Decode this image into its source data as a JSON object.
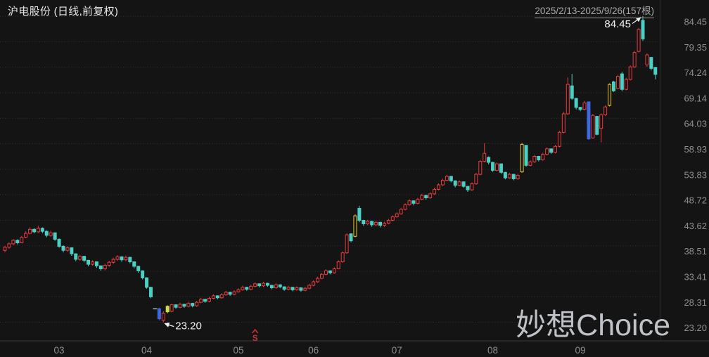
{
  "header": {
    "title": "沪电股份 (日线,前复权)",
    "range_link": "2025/2/13-2025/9/26(157根)"
  },
  "watermark": "妙想Choice",
  "annotations": {
    "high_label": "84.45",
    "low_label": "23.20",
    "signal_marker": "S"
  },
  "colors": {
    "background": "#141414",
    "up": "#e83b3e",
    "down": "#4bd0c3",
    "blue": "#3d68e0",
    "yellow": "#e8c52f",
    "yellowgreen": "#cbe14b",
    "flat": "#9fb6bf",
    "grid": "#323232",
    "axis_line": "#3b3b3b",
    "axis_text": "#8f8f8f",
    "annotation_text": "#f2f2f2",
    "signal": "#cf3232",
    "watermark": "#ccd0d5"
  },
  "chart_data": {
    "type": "candlestick",
    "symbol": "沪电股份",
    "period_type": "日线",
    "adjustment": "前复权",
    "date_range": "2025/2/13-2025/9/26",
    "bar_count": 157,
    "high": 84.45,
    "low": 23.2,
    "high_index": 153,
    "low_index": 38,
    "sell_signal_index": 60,
    "ylim": [
      23.2,
      84.45
    ],
    "grid": "dotted-horizontal",
    "y_axis_labels": [
      "84.45",
      "79.35",
      "74.24",
      "69.14",
      "64.03",
      "58.93",
      "53.83",
      "48.72",
      "43.62",
      "38.51",
      "33.41",
      "28.31",
      "23.20"
    ],
    "x_axis": [
      {
        "label": "03",
        "index": 13
      },
      {
        "label": "04",
        "index": 34
      },
      {
        "label": "05",
        "index": 56
      },
      {
        "label": "06",
        "index": 74
      },
      {
        "label": "07",
        "index": 94
      },
      {
        "label": "08",
        "index": 117
      },
      {
        "label": "09",
        "index": 138
      }
    ],
    "color_overrides": {
      "36": "flat",
      "37": "blue",
      "39": "yellowgreen",
      "84": "yellow",
      "124": "yellow",
      "140": "blue",
      "145": "yellow"
    },
    "ohlc": [
      [
        37.6,
        38.5,
        37.2,
        38.2
      ],
      [
        38.2,
        39.2,
        37.9,
        38.9
      ],
      [
        38.9,
        39.9,
        38.6,
        39.6
      ],
      [
        39.6,
        39.8,
        38.8,
        39.1
      ],
      [
        39.1,
        40.5,
        39.0,
        40.2
      ],
      [
        40.2,
        41.4,
        40.0,
        41.0
      ],
      [
        41.0,
        42.2,
        40.8,
        41.8
      ],
      [
        41.8,
        42.0,
        41.0,
        41.3
      ],
      [
        41.3,
        42.5,
        41.1,
        42.0
      ],
      [
        42.0,
        42.2,
        41.0,
        41.4
      ],
      [
        41.4,
        41.6,
        40.2,
        40.6
      ],
      [
        40.6,
        41.5,
        40.3,
        41.1
      ],
      [
        41.1,
        41.2,
        39.5,
        39.8
      ],
      [
        39.8,
        40.0,
        38.1,
        38.4
      ],
      [
        38.4,
        38.6,
        37.2,
        37.6
      ],
      [
        37.6,
        38.4,
        37.3,
        38.1
      ],
      [
        38.1,
        38.2,
        36.5,
        36.9
      ],
      [
        36.9,
        37.0,
        35.4,
        35.8
      ],
      [
        35.8,
        36.7,
        35.5,
        36.4
      ],
      [
        36.4,
        36.5,
        35.2,
        35.6
      ],
      [
        35.6,
        35.7,
        34.4,
        34.8
      ],
      [
        34.8,
        35.6,
        34.5,
        35.3
      ],
      [
        35.3,
        35.4,
        34.1,
        34.5
      ],
      [
        34.5,
        34.6,
        33.5,
        33.9
      ],
      [
        33.9,
        34.9,
        33.6,
        34.6
      ],
      [
        34.6,
        35.5,
        34.3,
        35.2
      ],
      [
        35.2,
        36.1,
        34.9,
        35.8
      ],
      [
        35.8,
        36.6,
        35.5,
        36.3
      ],
      [
        36.3,
        36.4,
        35.3,
        35.7
      ],
      [
        35.7,
        36.5,
        35.4,
        36.2
      ],
      [
        36.2,
        36.3,
        35.0,
        35.3
      ],
      [
        35.3,
        35.4,
        34.0,
        34.4
      ],
      [
        34.4,
        34.5,
        33.1,
        33.5
      ],
      [
        33.5,
        33.6,
        31.8,
        32.1
      ],
      [
        32.1,
        32.2,
        29.9,
        30.2
      ],
      [
        30.2,
        30.3,
        28.0,
        28.3
      ],
      [
        25.9,
        25.9,
        25.9,
        25.9
      ],
      [
        25.9,
        26.1,
        23.6,
        23.9
      ],
      [
        23.6,
        25.4,
        23.2,
        25.0
      ],
      [
        26.4,
        26.6,
        25.0,
        25.3
      ],
      [
        25.4,
        26.9,
        25.2,
        26.7
      ],
      [
        26.7,
        26.8,
        25.9,
        26.2
      ],
      [
        26.2,
        27.1,
        26.0,
        26.8
      ],
      [
        26.8,
        26.9,
        26.1,
        26.4
      ],
      [
        26.4,
        27.3,
        26.2,
        27.0
      ],
      [
        27.0,
        27.1,
        26.2,
        26.5
      ],
      [
        26.5,
        27.5,
        26.3,
        27.2
      ],
      [
        27.2,
        28.1,
        27.0,
        27.8
      ],
      [
        27.8,
        27.9,
        27.1,
        27.4
      ],
      [
        27.4,
        28.3,
        27.2,
        28.0
      ],
      [
        28.0,
        28.8,
        27.8,
        28.5
      ],
      [
        28.5,
        28.6,
        27.8,
        28.1
      ],
      [
        28.1,
        29.0,
        27.9,
        28.7
      ],
      [
        28.7,
        29.5,
        28.5,
        29.2
      ],
      [
        29.2,
        29.3,
        28.5,
        28.8
      ],
      [
        28.8,
        29.6,
        28.6,
        29.3
      ],
      [
        29.3,
        30.0,
        29.1,
        29.7
      ],
      [
        29.7,
        30.5,
        29.5,
        30.2
      ],
      [
        30.2,
        30.3,
        29.5,
        29.8
      ],
      [
        29.8,
        30.7,
        29.6,
        30.4
      ],
      [
        30.4,
        31.2,
        30.2,
        30.9
      ],
      [
        30.9,
        31.0,
        30.2,
        30.5
      ],
      [
        30.5,
        31.3,
        30.3,
        31.0
      ],
      [
        31.0,
        31.1,
        30.3,
        30.6
      ],
      [
        30.6,
        30.7,
        29.8,
        30.1
      ],
      [
        30.1,
        31.0,
        29.9,
        30.7
      ],
      [
        30.7,
        30.8,
        30.0,
        30.3
      ],
      [
        30.3,
        30.4,
        29.5,
        29.8
      ],
      [
        29.8,
        30.5,
        29.6,
        30.2
      ],
      [
        30.2,
        30.3,
        29.4,
        29.7
      ],
      [
        29.7,
        30.4,
        29.5,
        30.1
      ],
      [
        30.1,
        30.2,
        29.3,
        29.6
      ],
      [
        29.6,
        30.3,
        29.4,
        30.0
      ],
      [
        30.0,
        30.9,
        29.8,
        30.6
      ],
      [
        30.6,
        31.6,
        30.4,
        31.3
      ],
      [
        31.3,
        32.3,
        31.1,
        32.0
      ],
      [
        32.0,
        33.1,
        31.8,
        32.8
      ],
      [
        32.8,
        33.8,
        32.6,
        33.5
      ],
      [
        33.5,
        33.6,
        32.8,
        33.1
      ],
      [
        33.1,
        34.2,
        32.9,
        33.9
      ],
      [
        33.9,
        35.6,
        33.8,
        35.3
      ],
      [
        35.3,
        37.4,
        35.1,
        37.1
      ],
      [
        37.1,
        41.0,
        36.9,
        40.7
      ],
      [
        40.9,
        41.0,
        39.2,
        39.5
      ],
      [
        40.4,
        44.8,
        40.2,
        44.5
      ],
      [
        46.0,
        46.5,
        43.2,
        43.6
      ],
      [
        43.6,
        43.7,
        42.5,
        42.9
      ],
      [
        42.9,
        43.7,
        42.6,
        43.4
      ],
      [
        43.4,
        43.5,
        42.3,
        42.7
      ],
      [
        42.7,
        43.5,
        42.4,
        43.2
      ],
      [
        43.2,
        43.3,
        42.2,
        42.6
      ],
      [
        42.6,
        43.3,
        42.3,
        43.0
      ],
      [
        43.0,
        43.9,
        42.8,
        43.6
      ],
      [
        43.6,
        44.6,
        43.4,
        44.3
      ],
      [
        44.3,
        45.2,
        44.1,
        44.9
      ],
      [
        44.9,
        46.1,
        44.7,
        45.8
      ],
      [
        45.8,
        47.0,
        45.6,
        46.7
      ],
      [
        46.7,
        47.8,
        46.5,
        47.5
      ],
      [
        47.5,
        47.6,
        46.6,
        47.0
      ],
      [
        47.0,
        48.1,
        46.8,
        47.8
      ],
      [
        47.8,
        48.9,
        47.6,
        48.6
      ],
      [
        48.6,
        48.7,
        47.7,
        48.1
      ],
      [
        48.1,
        49.2,
        47.9,
        48.9
      ],
      [
        48.9,
        50.1,
        48.7,
        49.8
      ],
      [
        49.8,
        51.0,
        49.6,
        50.7
      ],
      [
        50.7,
        51.9,
        50.5,
        51.6
      ],
      [
        51.6,
        52.7,
        51.4,
        52.4
      ],
      [
        52.4,
        52.5,
        51.2,
        51.5
      ],
      [
        51.5,
        51.6,
        50.2,
        50.6
      ],
      [
        50.6,
        51.6,
        50.4,
        51.3
      ],
      [
        51.3,
        51.4,
        50.1,
        50.4
      ],
      [
        50.4,
        50.5,
        49.3,
        49.7
      ],
      [
        49.7,
        51.2,
        49.5,
        50.9
      ],
      [
        50.9,
        53.1,
        50.7,
        52.8
      ],
      [
        52.8,
        55.7,
        52.6,
        55.4
      ],
      [
        55.4,
        59.0,
        55.2,
        57.0
      ],
      [
        56.2,
        56.4,
        54.8,
        55.2
      ],
      [
        55.2,
        55.3,
        53.3,
        53.6
      ],
      [
        53.6,
        55.2,
        53.4,
        54.9
      ],
      [
        54.9,
        55.0,
        52.9,
        53.2
      ],
      [
        53.2,
        53.3,
        51.8,
        52.1
      ],
      [
        52.1,
        53.1,
        51.9,
        52.8
      ],
      [
        52.8,
        52.9,
        51.6,
        51.9
      ],
      [
        51.9,
        52.9,
        51.7,
        52.6
      ],
      [
        53.3,
        59.1,
        53.1,
        58.8
      ],
      [
        58.6,
        58.7,
        54.3,
        54.6
      ],
      [
        54.6,
        55.6,
        54.4,
        55.3
      ],
      [
        55.3,
        56.7,
        55.1,
        56.4
      ],
      [
        56.4,
        56.5,
        55.4,
        55.7
      ],
      [
        55.7,
        57.1,
        55.5,
        56.8
      ],
      [
        56.8,
        58.2,
        56.6,
        57.9
      ],
      [
        57.9,
        58.0,
        56.9,
        57.2
      ],
      [
        57.2,
        58.7,
        57.0,
        58.4
      ],
      [
        58.4,
        61.5,
        58.2,
        61.2
      ],
      [
        61.2,
        65.3,
        61.0,
        64.9
      ],
      [
        64.9,
        72.2,
        64.7,
        70.8
      ],
      [
        70.5,
        72.9,
        67.7,
        68.0
      ],
      [
        68.0,
        68.1,
        65.8,
        66.2
      ],
      [
        66.2,
        66.3,
        65.4,
        65.8
      ],
      [
        65.8,
        67.5,
        65.6,
        67.1
      ],
      [
        67.3,
        67.4,
        59.7,
        59.9
      ],
      [
        60.1,
        64.9,
        59.9,
        64.6
      ],
      [
        64.4,
        64.5,
        60.6,
        60.8
      ],
      [
        62.0,
        65.0,
        59.2,
        64.7
      ],
      [
        64.7,
        66.6,
        64.5,
        66.3
      ],
      [
        66.6,
        71.0,
        66.4,
        70.8
      ],
      [
        71.3,
        71.5,
        69.3,
        69.5
      ],
      [
        70.0,
        72.7,
        69.8,
        72.4
      ],
      [
        72.9,
        73.3,
        69.4,
        69.8
      ],
      [
        69.8,
        72.1,
        69.6,
        71.8
      ],
      [
        71.8,
        74.6,
        71.6,
        74.3
      ],
      [
        74.3,
        77.5,
        74.1,
        77.2
      ],
      [
        77.4,
        82.1,
        77.2,
        81.8
      ],
      [
        83.6,
        84.45,
        79.5,
        79.9
      ],
      [
        74.7,
        77.0,
        74.3,
        76.7
      ],
      [
        76.2,
        76.3,
        73.6,
        74.0
      ],
      [
        74.2,
        74.3,
        71.8,
        72.8
      ]
    ]
  }
}
